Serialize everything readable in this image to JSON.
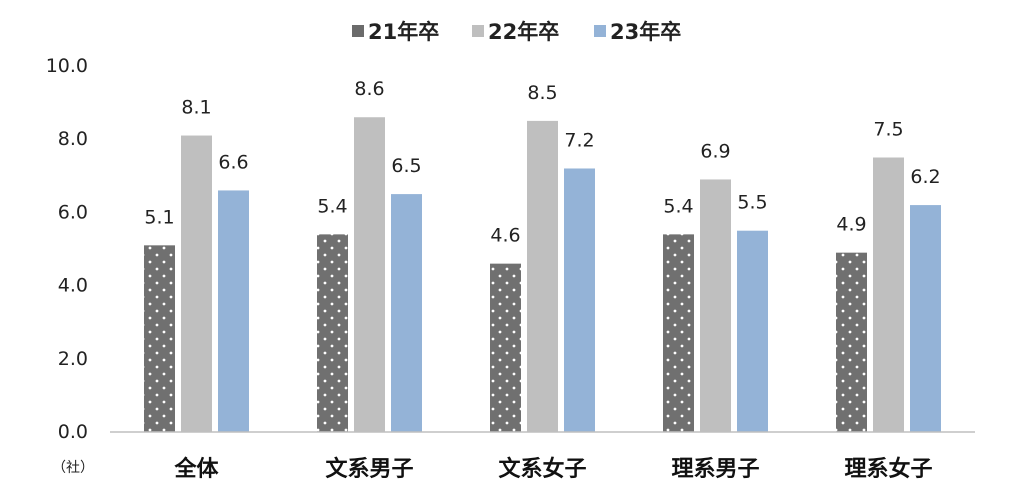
{
  "chart_data": {
    "type": "bar",
    "categories": [
      "全体",
      "文系男子",
      "文系女子",
      "理系男子",
      "理系女子"
    ],
    "series": [
      {
        "name": "21年卒",
        "color": "#707070",
        "pattern": "dotted",
        "values": [
          5.1,
          5.4,
          4.6,
          5.4,
          4.9
        ]
      },
      {
        "name": "22年卒",
        "color": "#bfbfbf",
        "values": [
          8.1,
          8.6,
          8.5,
          6.9,
          7.5
        ]
      },
      {
        "name": "23年卒",
        "color": "#94b3d7",
        "values": [
          6.6,
          6.5,
          7.2,
          5.5,
          6.2
        ]
      }
    ],
    "yticks": [
      "0.0",
      "2.0",
      "4.0",
      "6.0",
      "8.0",
      "10.0"
    ],
    "ylim": [
      0,
      10
    ],
    "unit_label": "（社）",
    "legend_position": "top-center",
    "grid": false
  }
}
